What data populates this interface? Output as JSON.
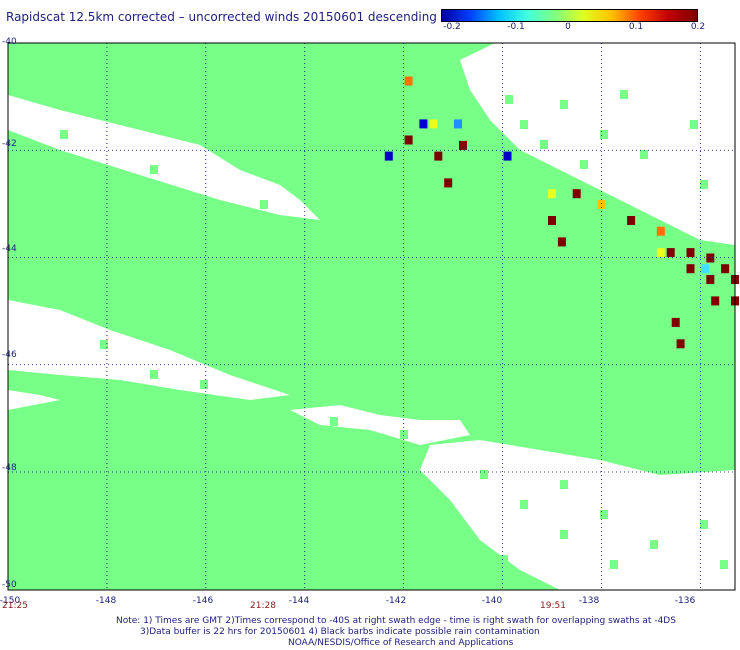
{
  "title": "Rapidscat 12.5km corrected – uncorrected winds 20150601 descending",
  "colorbar": {
    "tick_labels": [
      "-0.2",
      "-0.1",
      "0",
      "0.1",
      "0.2"
    ],
    "colors": [
      "#0000a0",
      "#0040ff",
      "#00c0ff",
      "#40ffe0",
      "#80ff80",
      "#e0ff20",
      "#ffc000",
      "#ff4000",
      "#c00000",
      "#800000"
    ]
  },
  "map": {
    "lat_labels": [
      "-40",
      "-42",
      "-44",
      "-46",
      "-48",
      "-50"
    ],
    "lon_labels": [
      "-150",
      "-148",
      "-146",
      "-144",
      "-142",
      "-140",
      "-138",
      "-136"
    ],
    "lon_range": [
      -150,
      -135.3
    ],
    "lat_range": [
      -40,
      -50.2
    ],
    "swath_color": "#77ff88",
    "anomaly_cells": [
      {
        "lon": -141.9,
        "lat": -40.7,
        "color": "#ff7000"
      },
      {
        "lon": -141.6,
        "lat": -41.5,
        "color": "#0000cc"
      },
      {
        "lon": -141.4,
        "lat": -41.5,
        "color": "#e8ff20"
      },
      {
        "lon": -140.9,
        "lat": -41.5,
        "color": "#1e90ff"
      },
      {
        "lon": -141.9,
        "lat": -41.8,
        "color": "#800000"
      },
      {
        "lon": -140.8,
        "lat": -41.9,
        "color": "#800000"
      },
      {
        "lon": -142.3,
        "lat": -42.1,
        "color": "#0000cc"
      },
      {
        "lon": -141.3,
        "lat": -42.1,
        "color": "#800000"
      },
      {
        "lon": -139.9,
        "lat": -42.1,
        "color": "#0000cc"
      },
      {
        "lon": -141.1,
        "lat": -42.6,
        "color": "#800000"
      },
      {
        "lon": -139.0,
        "lat": -42.8,
        "color": "#e8ff20"
      },
      {
        "lon": -138.5,
        "lat": -42.8,
        "color": "#800000"
      },
      {
        "lon": -138.0,
        "lat": -43.0,
        "color": "#ffc000"
      },
      {
        "lon": -139.0,
        "lat": -43.3,
        "color": "#800000"
      },
      {
        "lon": -137.4,
        "lat": -43.3,
        "color": "#800000"
      },
      {
        "lon": -136.8,
        "lat": -43.5,
        "color": "#ff7000"
      },
      {
        "lon": -138.8,
        "lat": -43.7,
        "color": "#800000"
      },
      {
        "lon": -136.8,
        "lat": -43.9,
        "color": "#e8ff20"
      },
      {
        "lon": -136.6,
        "lat": -43.9,
        "color": "#800000"
      },
      {
        "lon": -136.2,
        "lat": -43.9,
        "color": "#800000"
      },
      {
        "lon": -135.8,
        "lat": -44.0,
        "color": "#800000"
      },
      {
        "lon": -136.2,
        "lat": -44.2,
        "color": "#800000"
      },
      {
        "lon": -135.9,
        "lat": -44.2,
        "color": "#40e0ff"
      },
      {
        "lon": -135.5,
        "lat": -44.2,
        "color": "#800000"
      },
      {
        "lon": -135.8,
        "lat": -44.4,
        "color": "#800000"
      },
      {
        "lon": -135.3,
        "lat": -44.4,
        "color": "#800000"
      },
      {
        "lon": -135.7,
        "lat": -44.8,
        "color": "#800000"
      },
      {
        "lon": -135.3,
        "lat": -44.8,
        "color": "#800000"
      },
      {
        "lon": -136.5,
        "lat": -45.2,
        "color": "#800000"
      },
      {
        "lon": -136.4,
        "lat": -45.6,
        "color": "#800000"
      }
    ]
  },
  "time_labels": [
    "21:25",
    "21:28",
    "19:51"
  ],
  "notes": [
    "Note: 1) Times are GMT 2)Times correspond to -40S at right swath edge - time is right swath for overlapping swaths at -4DS",
    "3)Data buffer is 22 hrs for 20150601 4) Black barbs indicate possible rain contamination",
    "NOAA/NESDIS/Office of Research and Applications"
  ]
}
